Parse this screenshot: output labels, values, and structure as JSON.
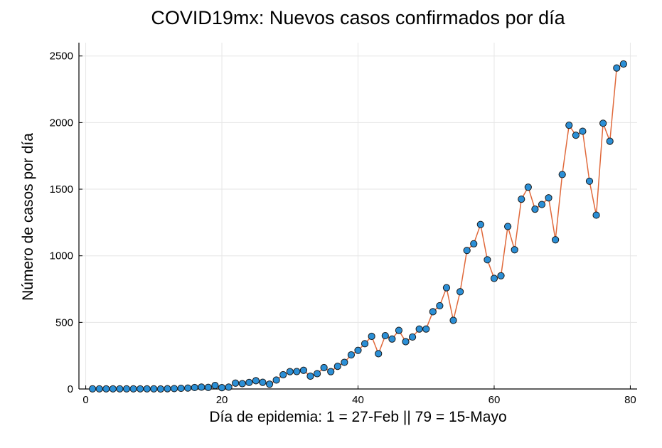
{
  "chart_data": {
    "type": "line",
    "title": "COVID19mx: Nuevos casos confirmados por día",
    "xlabel": "Día de epidemia: 1 = 27-Feb || 79 = 15-Mayo",
    "ylabel": "Número de casos por día",
    "xlim": [
      -1,
      81
    ],
    "ylim": [
      0,
      2600
    ],
    "xticks": [
      0,
      20,
      40,
      60,
      80
    ],
    "yticks": [
      0,
      500,
      1000,
      1500,
      2000,
      2500
    ],
    "grid": true,
    "legend": "none",
    "line_color": "#e0693b",
    "marker_color": "#2b8fd6",
    "marker_edge_color": "#1a1a1a",
    "series": [
      {
        "x": [
          1,
          2,
          3,
          4,
          5,
          6,
          7,
          8,
          9,
          10,
          11,
          12,
          13,
          14,
          15,
          16,
          17,
          18,
          19,
          20,
          21,
          22,
          23,
          24,
          25,
          26,
          27,
          28,
          29,
          30,
          31,
          32,
          33,
          34,
          35,
          36,
          37,
          38,
          39,
          40,
          41,
          42,
          43,
          44,
          45,
          46,
          47,
          48,
          49,
          50,
          51,
          52,
          53,
          54,
          55,
          56,
          57,
          58,
          59,
          60,
          61,
          62,
          63,
          64,
          65,
          66,
          67,
          68,
          69,
          70,
          71,
          72,
          73,
          74,
          75,
          76,
          77,
          78,
          79
        ],
        "y": [
          1,
          1,
          1,
          1,
          1,
          1,
          1,
          1,
          1,
          1,
          0,
          2,
          3,
          5,
          7,
          11,
          14,
          12,
          26,
          10,
          14,
          44,
          40,
          49,
          62,
          50,
          36,
          67,
          107,
          130,
          131,
          140,
          96,
          115,
          160,
          130,
          170,
          200,
          256,
          290,
          340,
          395,
          265,
          400,
          375,
          440,
          355,
          390,
          450,
          450,
          580,
          625,
          760,
          515,
          730,
          1040,
          1090,
          1235,
          970,
          830,
          850,
          1220,
          1045,
          1425,
          1515,
          1350,
          1385,
          1435,
          1120,
          1610,
          1980,
          1905,
          1935,
          1560,
          1305,
          1995,
          1860,
          2410,
          2440
        ]
      }
    ]
  }
}
